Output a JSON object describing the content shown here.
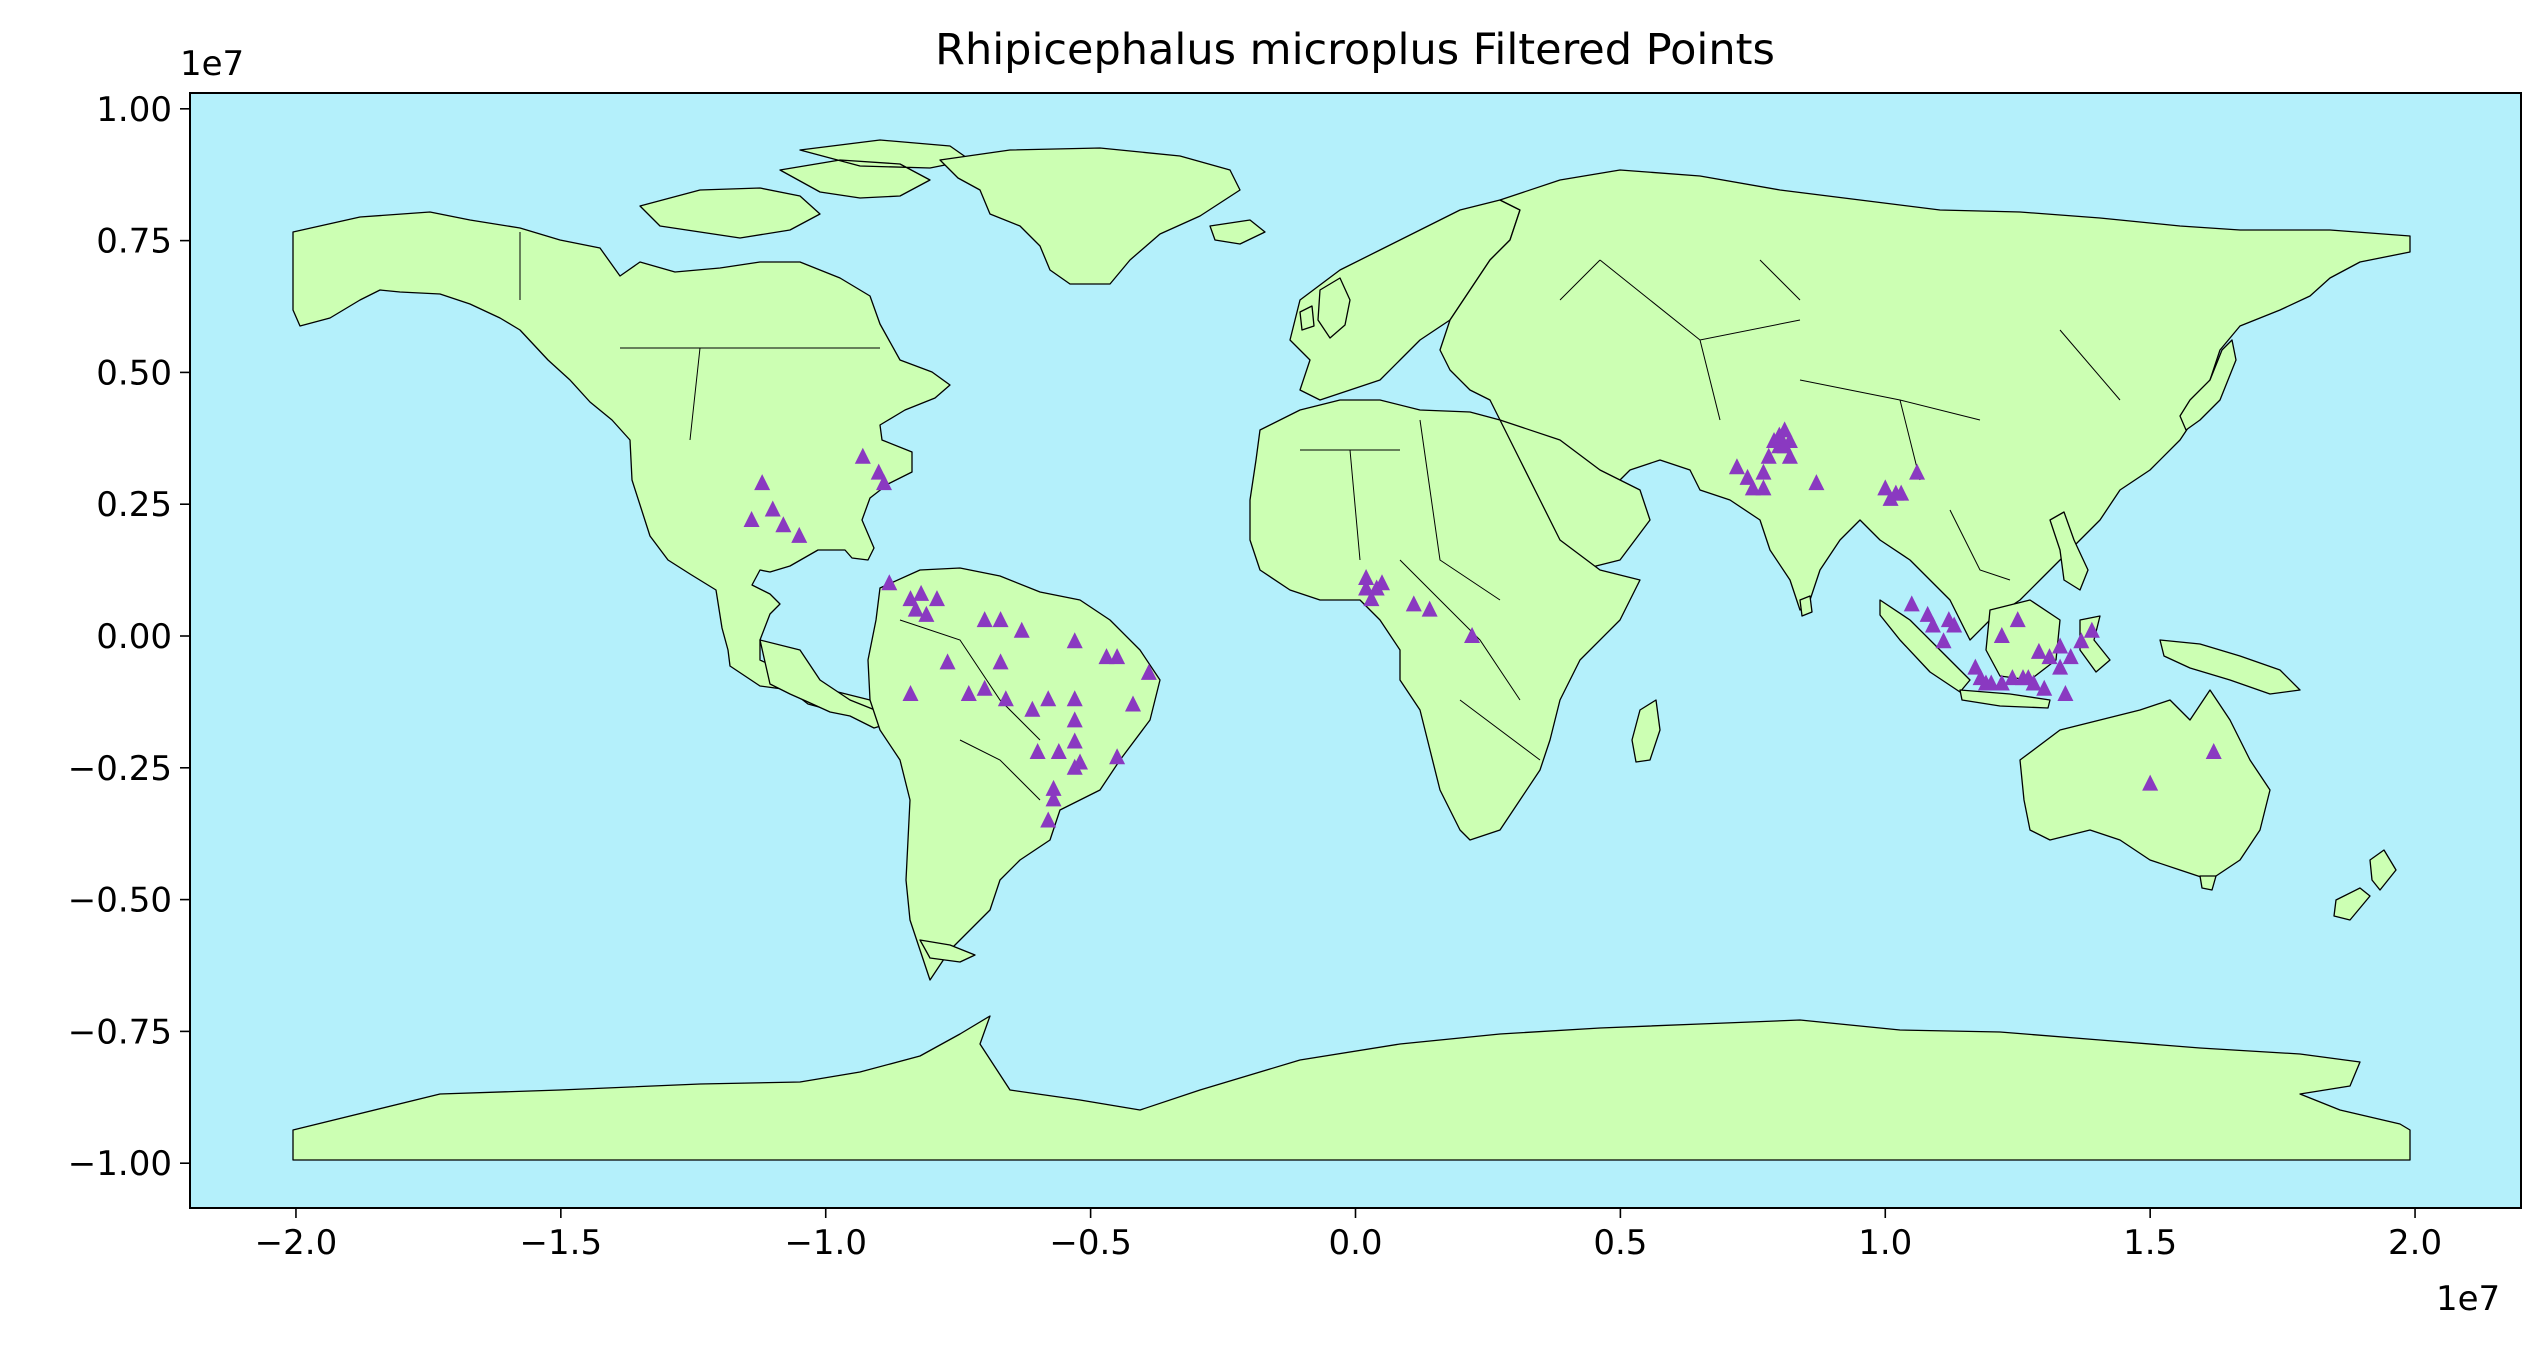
{
  "colors": {
    "ocean": "#b4f0fb",
    "land": "#ccffb3",
    "marker": "#8a39c1",
    "outline": "#000000"
  },
  "chart_data": {
    "type": "scatter",
    "title": "Rhipicephalus microplus Filtered Points",
    "xlabel": "",
    "ylabel": "",
    "x_offset_label": "1e7",
    "y_offset_label": "1e7",
    "xlim": [
      -2.2,
      2.2
    ],
    "ylim": [
      -1.085,
      1.03
    ],
    "x_ticks": [
      {
        "value": -2.0,
        "label": "−2.0"
      },
      {
        "value": -1.5,
        "label": "−1.5"
      },
      {
        "value": -1.0,
        "label": "−1.0"
      },
      {
        "value": -0.5,
        "label": "−0.5"
      },
      {
        "value": 0.0,
        "label": "0.0"
      },
      {
        "value": 0.5,
        "label": "0.5"
      },
      {
        "value": 1.0,
        "label": "1.0"
      },
      {
        "value": 1.5,
        "label": "1.5"
      },
      {
        "value": 2.0,
        "label": "2.0"
      }
    ],
    "y_ticks": [
      {
        "value": 1.0,
        "label": "1.00"
      },
      {
        "value": 0.75,
        "label": "0.75"
      },
      {
        "value": 0.5,
        "label": "0.50"
      },
      {
        "value": 0.25,
        "label": "0.25"
      },
      {
        "value": 0.0,
        "label": "0.00"
      },
      {
        "value": -0.25,
        "label": "−0.25"
      },
      {
        "value": -0.5,
        "label": "−0.50"
      },
      {
        "value": -0.75,
        "label": "−0.75"
      },
      {
        "value": -1.0,
        "label": "−1.00"
      }
    ],
    "grid": false,
    "marker": "triangle",
    "series": [
      {
        "points": [
          [
            -1.12,
            0.29
          ],
          [
            -1.14,
            0.22
          ],
          [
            -1.1,
            0.24
          ],
          [
            -1.08,
            0.21
          ],
          [
            -1.05,
            0.19
          ],
          [
            -0.93,
            0.34
          ],
          [
            -0.9,
            0.31
          ],
          [
            -0.89,
            0.29
          ],
          [
            -0.88,
            0.1
          ],
          [
            -0.84,
            0.07
          ],
          [
            -0.83,
            0.05
          ],
          [
            -0.82,
            0.08
          ],
          [
            -0.81,
            0.04
          ],
          [
            -0.79,
            0.07
          ],
          [
            -0.7,
            0.03
          ],
          [
            -0.67,
            0.03
          ],
          [
            -0.63,
            0.01
          ],
          [
            -0.53,
            -0.01
          ],
          [
            -0.47,
            -0.04
          ],
          [
            -0.45,
            -0.04
          ],
          [
            -0.39,
            -0.07
          ],
          [
            -0.84,
            -0.11
          ],
          [
            -0.77,
            -0.05
          ],
          [
            -0.73,
            -0.11
          ],
          [
            -0.7,
            -0.1
          ],
          [
            -0.66,
            -0.12
          ],
          [
            -0.61,
            -0.14
          ],
          [
            -0.67,
            -0.05
          ],
          [
            -0.58,
            -0.12
          ],
          [
            -0.53,
            -0.12
          ],
          [
            -0.53,
            -0.16
          ],
          [
            -0.53,
            -0.2
          ],
          [
            -0.52,
            -0.24
          ],
          [
            -0.42,
            -0.13
          ],
          [
            -0.45,
            -0.23
          ],
          [
            -0.6,
            -0.22
          ],
          [
            -0.56,
            -0.22
          ],
          [
            -0.53,
            -0.25
          ],
          [
            -0.57,
            -0.29
          ],
          [
            -0.57,
            -0.31
          ],
          [
            -0.58,
            -0.35
          ],
          [
            0.02,
            0.11
          ],
          [
            0.02,
            0.09
          ],
          [
            0.03,
            0.07
          ],
          [
            0.04,
            0.09
          ],
          [
            0.05,
            0.1
          ],
          [
            0.11,
            0.06
          ],
          [
            0.14,
            0.05
          ],
          [
            0.22,
            0.0
          ],
          [
            0.72,
            0.32
          ],
          [
            0.74,
            0.3
          ],
          [
            0.75,
            0.28
          ],
          [
            0.77,
            0.28
          ],
          [
            0.77,
            0.31
          ],
          [
            0.78,
            0.34
          ],
          [
            0.79,
            0.37
          ],
          [
            0.8,
            0.36
          ],
          [
            0.8,
            0.38
          ],
          [
            0.81,
            0.36
          ],
          [
            0.81,
            0.39
          ],
          [
            0.82,
            0.37
          ],
          [
            0.82,
            0.34
          ],
          [
            0.87,
            0.29
          ],
          [
            1.0,
            0.28
          ],
          [
            1.01,
            0.26
          ],
          [
            1.02,
            0.27
          ],
          [
            1.03,
            0.27
          ],
          [
            1.06,
            0.31
          ],
          [
            1.05,
            0.06
          ],
          [
            1.08,
            0.04
          ],
          [
            1.09,
            0.02
          ],
          [
            1.11,
            -0.01
          ],
          [
            1.12,
            0.03
          ],
          [
            1.13,
            0.02
          ],
          [
            1.17,
            -0.06
          ],
          [
            1.18,
            -0.08
          ],
          [
            1.19,
            -0.09
          ],
          [
            1.2,
            -0.09
          ],
          [
            1.22,
            -0.09
          ],
          [
            1.24,
            -0.08
          ],
          [
            1.26,
            -0.08
          ],
          [
            1.27,
            -0.08
          ],
          [
            1.28,
            -0.09
          ],
          [
            1.3,
            -0.1
          ],
          [
            1.22,
            0.0
          ],
          [
            1.25,
            0.03
          ],
          [
            1.29,
            -0.03
          ],
          [
            1.31,
            -0.04
          ],
          [
            1.33,
            -0.06
          ],
          [
            1.33,
            -0.02
          ],
          [
            1.35,
            -0.04
          ],
          [
            1.34,
            -0.11
          ],
          [
            1.37,
            -0.01
          ],
          [
            1.39,
            0.01
          ],
          [
            1.5,
            -0.28
          ],
          [
            1.62,
            -0.22
          ]
        ]
      }
    ]
  }
}
